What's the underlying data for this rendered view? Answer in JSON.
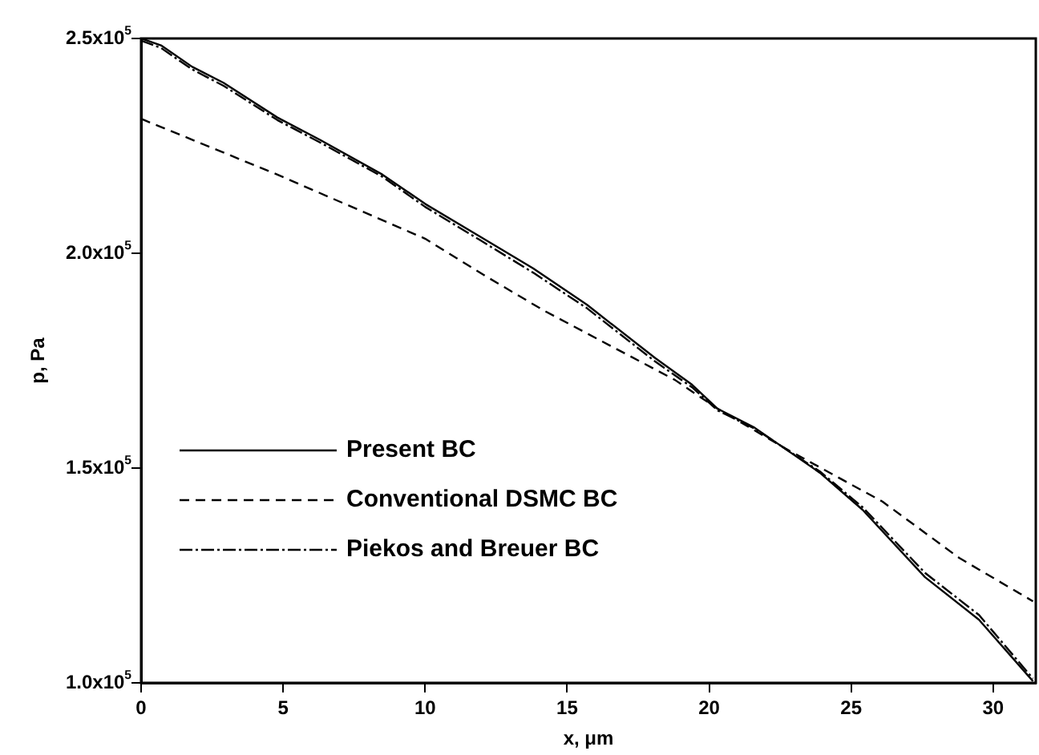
{
  "chart_data": {
    "type": "line",
    "xlabel": "x, μm",
    "ylabel": "p, Pa",
    "xlim": [
      0,
      31.5
    ],
    "xticks": [
      0,
      5,
      10,
      15,
      20,
      25,
      30
    ],
    "ylim": [
      100000,
      250000
    ],
    "yticks": [
      {
        "value": 100000,
        "label": "1.0x10$^{5}$"
      },
      {
        "value": 150000,
        "label": "1.5x10$^{5}$"
      },
      {
        "value": 200000,
        "label": "2.0x10$^{5}$"
      },
      {
        "value": 250000,
        "label": "2.5x10$^{5}$"
      }
    ],
    "grid": false,
    "legend": "bottom left",
    "marker": "none",
    "series": [
      {
        "name": "Present BC",
        "color": "#000000",
        "line_style": "solid",
        "x": [
          0,
          0.7,
          1.8,
          2.9,
          4.8,
          6.3,
          8.5,
          10,
          11.9,
          13.8,
          15.7,
          18.1,
          19.4,
          20.3,
          21.6,
          23.9,
          25.4,
          27.6,
          29.5,
          31.4
        ],
        "values": [
          250000,
          248400,
          243400,
          239700,
          231600,
          226400,
          218300,
          211500,
          204000,
          196500,
          188000,
          175600,
          169400,
          163800,
          159400,
          148900,
          140300,
          124600,
          114700,
          100400
        ]
      },
      {
        "name": "Conventional DSMC BC",
        "color": "#000000",
        "line_style": "dashed",
        "x": [
          0,
          4.8,
          10,
          12.1,
          14.2,
          18.8,
          20.3,
          22.7,
          26.1,
          28.8,
          31.4
        ],
        "values": [
          231300,
          218300,
          203400,
          194800,
          186600,
          170500,
          163800,
          154500,
          142200,
          129100,
          119000
        ]
      },
      {
        "name": "Piekos and Breuer BC",
        "color": "#000000",
        "line_style": "dotted",
        "x": [
          0,
          0.7,
          1.8,
          2.9,
          4.8,
          6.3,
          8.5,
          10,
          11.9,
          13.8,
          15.7,
          18.1,
          19.4,
          20.3,
          21.6,
          23.9,
          25.4,
          27.6,
          29.5,
          31.4
        ],
        "values": [
          249500,
          247800,
          242800,
          239000,
          231000,
          225800,
          217800,
          210800,
          203200,
          195500,
          187200,
          174800,
          168800,
          163400,
          159200,
          149200,
          140900,
          125600,
          115800,
          101000
        ]
      }
    ]
  }
}
